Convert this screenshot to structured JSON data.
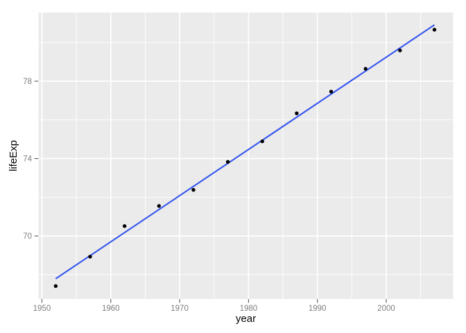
{
  "chart_data": {
    "type": "scatter",
    "title": "",
    "xlabel": "year",
    "ylabel": "lifeExp",
    "x": [
      1952,
      1957,
      1962,
      1967,
      1972,
      1977,
      1982,
      1987,
      1992,
      1997,
      2002,
      2007
    ],
    "y": [
      67.41,
      68.93,
      70.51,
      71.55,
      72.38,
      73.83,
      74.89,
      76.34,
      77.46,
      78.64,
      79.59,
      80.66
    ],
    "x_ticks": [
      1950,
      1960,
      1970,
      1980,
      1990,
      2000
    ],
    "y_ticks": [
      70,
      74,
      78
    ],
    "x_minor_gridlines": [
      1955,
      1965,
      1975,
      1985,
      1995,
      2005
    ],
    "y_minor_gridlines": [
      68,
      72,
      76,
      80
    ],
    "xlim": [
      1949.5,
      2009.72
    ],
    "ylim": [
      66.74,
      81.55
    ],
    "grid": "major-and-minor",
    "legend": "none",
    "trend_line": {
      "method": "linear-fit",
      "x1": 1952,
      "y1": 67.79,
      "x2": 2007,
      "y2": 80.91,
      "color": "#3355EE"
    },
    "point_color": "#000000",
    "panel_background": "#EBEBEB",
    "grid_color": "#FFFFFF",
    "tick_label_color": "#7E7E7E",
    "axis_title_color": "#000000"
  }
}
